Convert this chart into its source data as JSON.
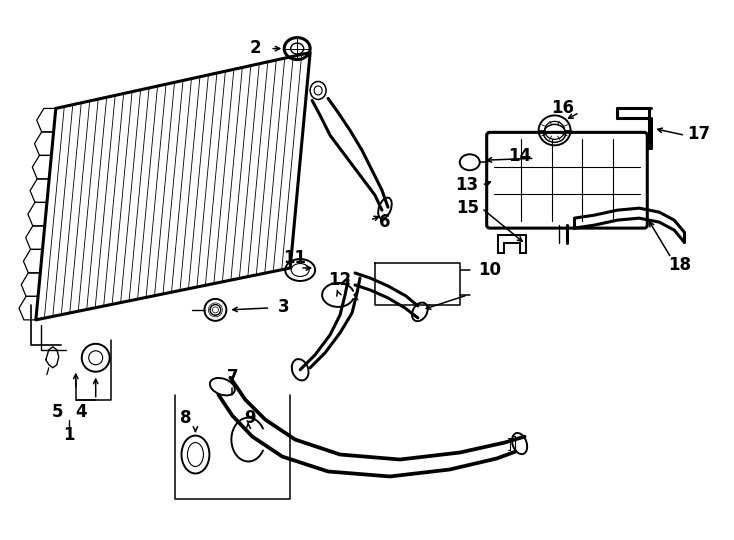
{
  "bg_color": "#ffffff",
  "line_color": "#000000",
  "fig_width": 7.34,
  "fig_height": 5.4,
  "dpi": 100,
  "font_size": 12,
  "lw": 1.4,
  "lw_thick": 2.2
}
